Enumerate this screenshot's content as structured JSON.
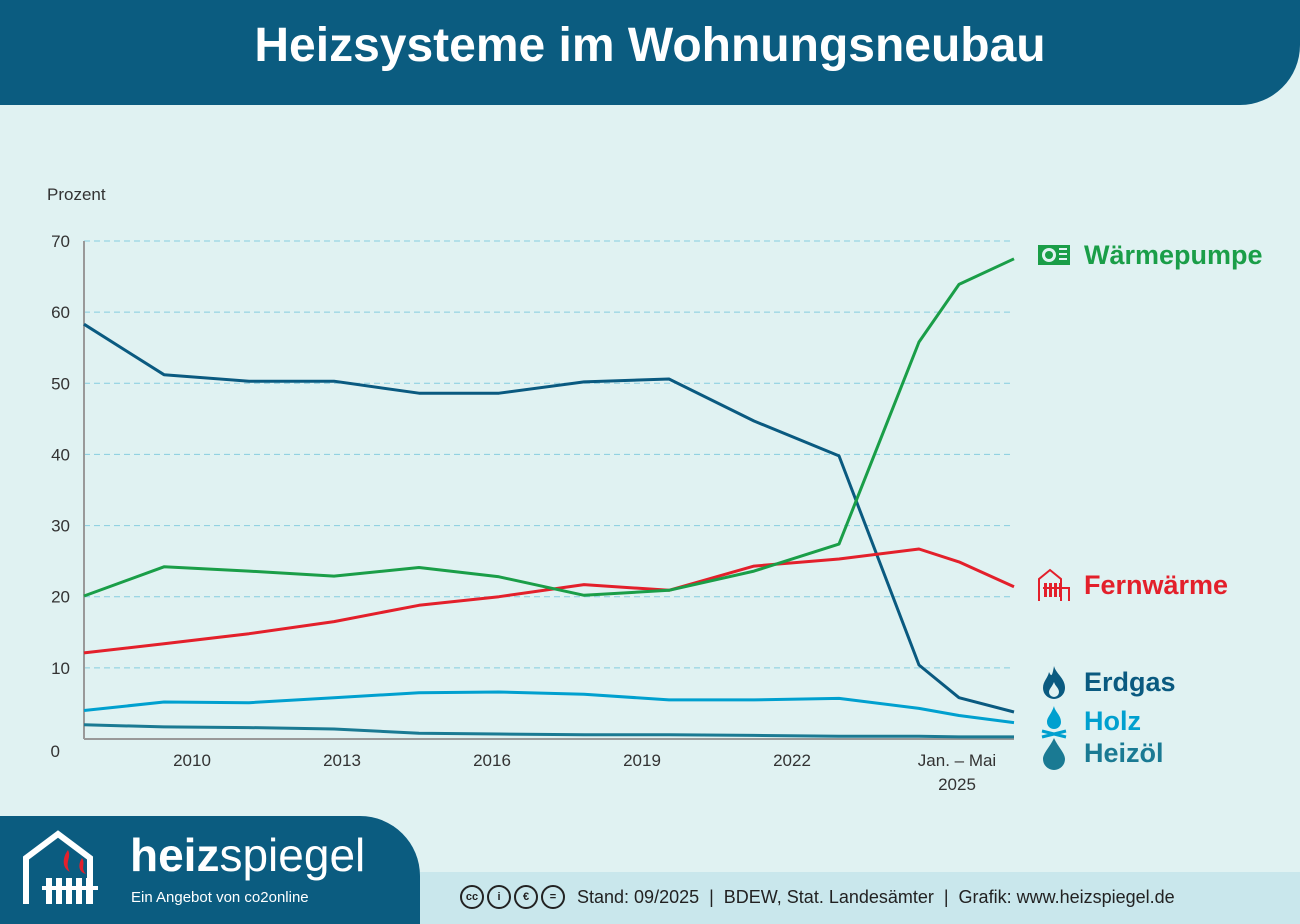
{
  "header": {
    "title": "Heizsysteme im Wohnungsneubau"
  },
  "chart_data": {
    "type": "line",
    "ylabel": "Prozent",
    "ylim": [
      0,
      70
    ],
    "yticks": [
      0,
      10,
      20,
      30,
      40,
      50,
      60,
      70
    ],
    "xlim": [
      2007.6,
      2026.2
    ],
    "xticks": [
      {
        "value": 2010,
        "label": "2010"
      },
      {
        "value": 2013,
        "label": "2013"
      },
      {
        "value": 2016,
        "label": "2016"
      },
      {
        "value": 2019,
        "label": "2019"
      },
      {
        "value": 2022,
        "label": "2022"
      },
      {
        "value": 2025.3,
        "label": "Jan. – Mai",
        "label2": "2025"
      }
    ],
    "grid": "horizontal-dashed",
    "legend": "right",
    "x": [
      2007.6,
      2009.2,
      2010.9,
      2012.6,
      2014.3,
      2015.9,
      2017.6,
      2019.3,
      2021.0,
      2022.7,
      2024.3,
      2025.1,
      2026.2
    ],
    "series": [
      {
        "name": "Wärmepumpe",
        "color": "#1a9e48",
        "icon": "heat-pump-icon",
        "values": [
          20.1,
          24.2,
          23.6,
          22.9,
          24.1,
          22.8,
          20.2,
          20.9,
          23.6,
          27.4,
          55.8,
          63.9,
          67.5
        ]
      },
      {
        "name": "Fernwärme",
        "color": "#e3202b",
        "icon": "radiator-icon",
        "values": [
          12.1,
          13.4,
          14.8,
          16.5,
          18.8,
          20.0,
          21.7,
          20.9,
          24.3,
          25.3,
          26.7,
          24.9,
          21.4
        ]
      },
      {
        "name": "Erdgas",
        "color": "#0a5a80",
        "icon": "flame-icon",
        "values": [
          58.3,
          51.2,
          50.3,
          50.3,
          48.6,
          48.6,
          50.2,
          50.6,
          44.7,
          39.8,
          10.4,
          5.8,
          3.8
        ]
      },
      {
        "name": "Holz",
        "color": "#00a0cf",
        "icon": "campfire-icon",
        "values": [
          4.0,
          5.2,
          5.1,
          5.8,
          6.5,
          6.6,
          6.3,
          5.5,
          5.5,
          5.7,
          4.3,
          3.3,
          2.3
        ]
      },
      {
        "name": "Heizöl",
        "color": "#1a7a93",
        "icon": "oil-drop-icon",
        "values": [
          2.0,
          1.7,
          1.6,
          1.4,
          0.8,
          0.7,
          0.6,
          0.6,
          0.5,
          0.4,
          0.4,
          0.3,
          0.3
        ]
      }
    ]
  },
  "footer": {
    "brand_bold": "heiz",
    "brand_light": "spiegel",
    "tagline": "Ein Angebot von co2online",
    "license_icons": [
      "cc",
      "by",
      "nc",
      "nd"
    ],
    "credits": "Stand: 09/2025  |  BDEW, Stat. Landesämter  |  Grafik: www.heizspiegel.de"
  }
}
